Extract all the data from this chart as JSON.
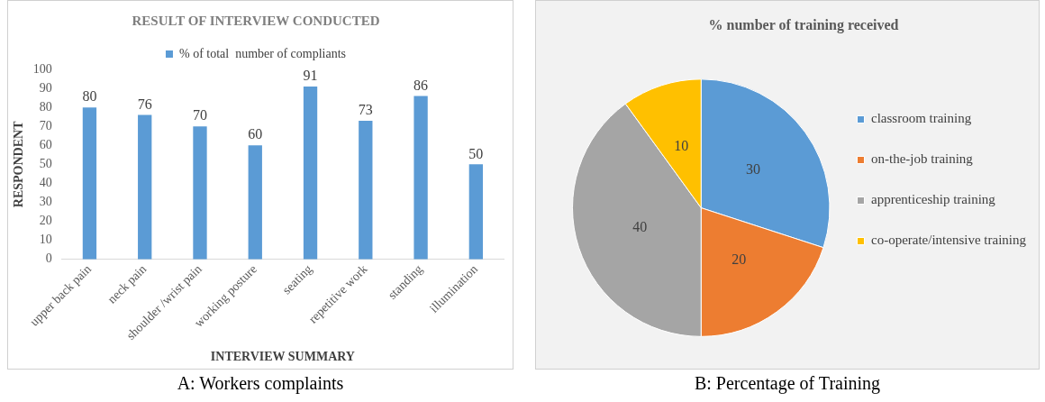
{
  "chart_data": [
    {
      "type": "bar",
      "title": "RESULT OF INTERVIEW CONDUCTED",
      "xlabel": "INTERVIEW SUMMARY",
      "ylabel": "RESPONDENT",
      "categories": [
        "upper back pain",
        "neck pain",
        "shoulder /wrist pain",
        "working posture",
        "seating",
        "repetitive work",
        "standing",
        "illumination"
      ],
      "series": [
        {
          "name": "% of total  number of compliants",
          "color": "#5b9bd5",
          "values": [
            80,
            76,
            70,
            60,
            91,
            73,
            86,
            50
          ]
        }
      ],
      "ylim": [
        0,
        100
      ],
      "yticks": [
        0,
        10,
        20,
        30,
        40,
        50,
        60,
        70,
        80,
        90,
        100
      ],
      "grid": false,
      "legend": "top",
      "data_labels": true,
      "annotations": [
        "A: Workers complaints"
      ]
    },
    {
      "type": "pie",
      "title": "% number of training received",
      "categories": [
        "classroom training",
        "on-the-job training",
        "apprenticeship training",
        "co-operate/intensive training"
      ],
      "values": [
        30,
        20,
        40,
        10
      ],
      "colors": [
        "#5b9bd5",
        "#ed7d31",
        "#a5a5a5",
        "#ffc000"
      ],
      "legend": "right",
      "data_labels": true,
      "annotations": [
        "B: Percentage of Training"
      ]
    }
  ]
}
